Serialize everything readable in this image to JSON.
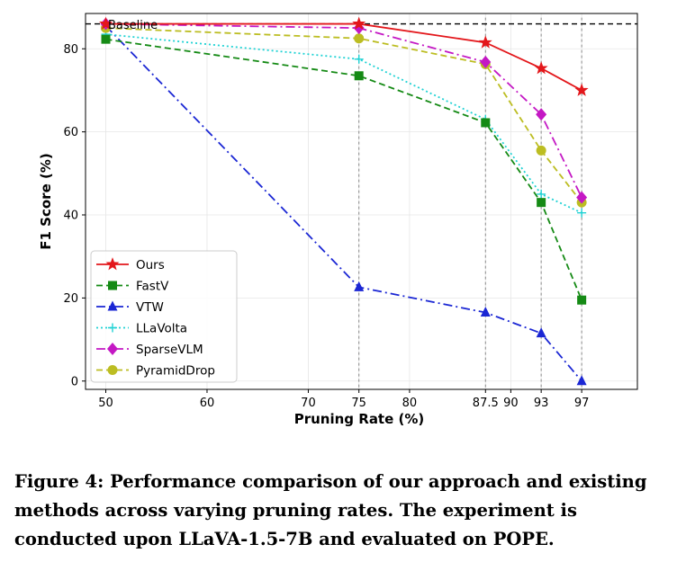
{
  "chart_data": {
    "type": "line",
    "xlabel": "Pruning Rate (%)",
    "ylabel": "F1 Score (%)",
    "xlim": [
      48,
      102.5
    ],
    "ylim": [
      -2,
      88.5
    ],
    "xticks": [
      50,
      60,
      70,
      75,
      80,
      87.5,
      90,
      93,
      97
    ],
    "xtick_labels": [
      "50",
      "60",
      "70",
      "75",
      "80",
      "87.5",
      "90",
      "93",
      "97"
    ],
    "yticks": [
      0,
      20,
      40,
      60,
      80
    ],
    "ytick_labels": [
      "0",
      "20",
      "40",
      "60",
      "80"
    ],
    "x": [
      50,
      75,
      87.5,
      93,
      97
    ],
    "vertical_reference_lines": [
      75,
      87.5,
      93,
      97
    ],
    "baseline": {
      "value": 86,
      "label": "Baseline"
    },
    "grid": true,
    "legend_position": "lower-left",
    "series": [
      {
        "name": "Ours",
        "values": [
          86,
          86,
          81.5,
          75.3,
          70
        ],
        "color": "#e3171b",
        "dash": "solid",
        "marker": "star"
      },
      {
        "name": "FastV",
        "values": [
          82.3,
          73.5,
          62.2,
          43,
          19.5
        ],
        "color": "#158a15",
        "dash": "dashed",
        "marker": "square"
      },
      {
        "name": "VTW",
        "values": [
          85.5,
          22.6,
          16.5,
          11.5,
          0
        ],
        "color": "#1b27d4",
        "dash": "dashdot",
        "marker": "triangle"
      },
      {
        "name": "LLaVolta",
        "values": [
          83.5,
          77.5,
          63,
          45,
          40.5
        ],
        "color": "#1fd2d4",
        "dash": "dotted",
        "marker": "plus"
      },
      {
        "name": "SparseVLM",
        "values": [
          86,
          85,
          76.8,
          64.2,
          44.2
        ],
        "color": "#c418c4",
        "dash": "dashdot",
        "marker": "diamond"
      },
      {
        "name": "PyramidDrop",
        "values": [
          85,
          82.5,
          76.3,
          55.5,
          43
        ],
        "color": "#bcbd22",
        "dash": "dashed",
        "marker": "circle"
      }
    ]
  },
  "caption": {
    "text": "Figure 4: Performance comparison of our approach and existing methods across varying pruning rates. The experiment is conducted upon LLaVA-1.5-7B and evaluated on POPE."
  }
}
